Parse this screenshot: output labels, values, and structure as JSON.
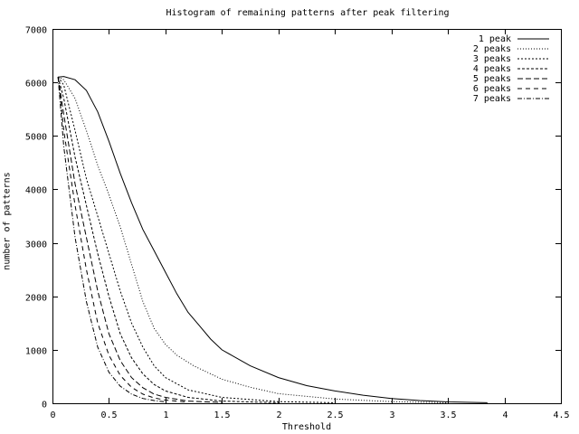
{
  "chart_data": {
    "type": "line",
    "title": "Histogram of remaining patterns after peak filtering",
    "xlabel": "Threshold",
    "ylabel": "number of patterns",
    "xlim": [
      0,
      4.5
    ],
    "ylim": [
      0,
      7000
    ],
    "xticks": [
      "0",
      "0.5",
      "1",
      "1.5",
      "2",
      "2.5",
      "3",
      "3.5",
      "4",
      "4.5"
    ],
    "yticks": [
      "0",
      "1000",
      "2000",
      "3000",
      "4000",
      "5000",
      "6000",
      "7000"
    ],
    "grid": false,
    "legend_position": "top-right",
    "series": [
      {
        "name": "1 peak",
        "dash": "",
        "points": [
          [
            0.05,
            6100
          ],
          [
            0.1,
            6110
          ],
          [
            0.2,
            6050
          ],
          [
            0.3,
            5850
          ],
          [
            0.4,
            5450
          ],
          [
            0.5,
            4900
          ],
          [
            0.6,
            4300
          ],
          [
            0.7,
            3750
          ],
          [
            0.8,
            3250
          ],
          [
            0.9,
            2850
          ],
          [
            1.0,
            2450
          ],
          [
            1.1,
            2050
          ],
          [
            1.2,
            1700
          ],
          [
            1.3,
            1450
          ],
          [
            1.4,
            1200
          ],
          [
            1.5,
            1000
          ],
          [
            1.75,
            700
          ],
          [
            2.0,
            480
          ],
          [
            2.25,
            330
          ],
          [
            2.5,
            230
          ],
          [
            2.75,
            150
          ],
          [
            3.0,
            90
          ],
          [
            3.25,
            50
          ],
          [
            3.5,
            25
          ],
          [
            3.85,
            10
          ]
        ]
      },
      {
        "name": "2 peaks",
        "dash": "1,2",
        "points": [
          [
            0.05,
            6100
          ],
          [
            0.1,
            6050
          ],
          [
            0.2,
            5700
          ],
          [
            0.3,
            5100
          ],
          [
            0.4,
            4450
          ],
          [
            0.5,
            3900
          ],
          [
            0.6,
            3300
          ],
          [
            0.7,
            2600
          ],
          [
            0.8,
            1900
          ],
          [
            0.9,
            1400
          ],
          [
            1.0,
            1100
          ],
          [
            1.1,
            900
          ],
          [
            1.25,
            700
          ],
          [
            1.5,
            450
          ],
          [
            1.75,
            300
          ],
          [
            2.0,
            180
          ],
          [
            2.5,
            80
          ],
          [
            3.0,
            30
          ],
          [
            3.5,
            10
          ]
        ]
      },
      {
        "name": "3 peaks",
        "dash": "2,2",
        "points": [
          [
            0.05,
            6100
          ],
          [
            0.1,
            5950
          ],
          [
            0.2,
            5100
          ],
          [
            0.3,
            4200
          ],
          [
            0.4,
            3500
          ],
          [
            0.5,
            2800
          ],
          [
            0.6,
            2100
          ],
          [
            0.7,
            1500
          ],
          [
            0.8,
            1050
          ],
          [
            0.9,
            700
          ],
          [
            1.0,
            480
          ],
          [
            1.2,
            250
          ],
          [
            1.5,
            110
          ],
          [
            2.0,
            30
          ],
          [
            2.5,
            10
          ]
        ]
      },
      {
        "name": "4 peaks",
        "dash": "3,2",
        "points": [
          [
            0.05,
            6100
          ],
          [
            0.1,
            5700
          ],
          [
            0.2,
            4600
          ],
          [
            0.3,
            3700
          ],
          [
            0.4,
            2800
          ],
          [
            0.5,
            2000
          ],
          [
            0.6,
            1300
          ],
          [
            0.7,
            850
          ],
          [
            0.8,
            550
          ],
          [
            0.9,
            350
          ],
          [
            1.0,
            230
          ],
          [
            1.2,
            110
          ],
          [
            1.5,
            40
          ],
          [
            2.0,
            10
          ]
        ]
      },
      {
        "name": "5 peaks",
        "dash": "6,3",
        "points": [
          [
            0.05,
            6100
          ],
          [
            0.1,
            5400
          ],
          [
            0.2,
            4100
          ],
          [
            0.3,
            3100
          ],
          [
            0.4,
            2100
          ],
          [
            0.5,
            1300
          ],
          [
            0.6,
            800
          ],
          [
            0.7,
            480
          ],
          [
            0.8,
            290
          ],
          [
            0.9,
            170
          ],
          [
            1.0,
            110
          ],
          [
            1.2,
            40
          ],
          [
            1.5,
            15
          ]
        ]
      },
      {
        "name": "6 peaks",
        "dash": "5,4",
        "points": [
          [
            0.05,
            6100
          ],
          [
            0.1,
            5100
          ],
          [
            0.2,
            3700
          ],
          [
            0.3,
            2500
          ],
          [
            0.4,
            1500
          ],
          [
            0.5,
            900
          ],
          [
            0.6,
            520
          ],
          [
            0.7,
            300
          ],
          [
            0.8,
            170
          ],
          [
            0.9,
            100
          ],
          [
            1.0,
            60
          ],
          [
            1.2,
            20
          ]
        ]
      },
      {
        "name": "7 peaks",
        "dash": "5,2,1,2",
        "points": [
          [
            0.05,
            6100
          ],
          [
            0.1,
            4800
          ],
          [
            0.2,
            3100
          ],
          [
            0.3,
            1900
          ],
          [
            0.4,
            1050
          ],
          [
            0.5,
            580
          ],
          [
            0.6,
            320
          ],
          [
            0.7,
            170
          ],
          [
            0.8,
            90
          ],
          [
            0.9,
            50
          ],
          [
            1.0,
            25
          ]
        ]
      }
    ]
  },
  "legend": {
    "items": [
      "1 peak",
      "2 peaks",
      "3 peaks",
      "4 peaks",
      "5 peaks",
      "6 peaks",
      "7 peaks"
    ]
  }
}
